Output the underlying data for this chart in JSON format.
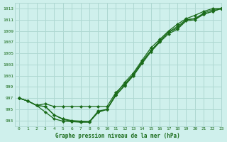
{
  "title": "Graphe pression niveau de la mer (hPa)",
  "background_color": "#cff0ec",
  "grid_color": "#aed8d2",
  "line_color": "#1a6b1a",
  "marker_color": "#1a6b1a",
  "xlim": [
    -0.5,
    23
  ],
  "ylim": [
    992.0,
    1014.0
  ],
  "yticks": [
    993,
    995,
    997,
    999,
    1001,
    1003,
    1005,
    1007,
    1009,
    1011,
    1013
  ],
  "xticks": [
    0,
    1,
    2,
    3,
    4,
    5,
    6,
    7,
    8,
    9,
    10,
    11,
    12,
    13,
    14,
    15,
    16,
    17,
    18,
    19,
    20,
    21,
    22,
    23
  ],
  "series": [
    [
      997.0,
      996.5,
      995.7,
      996.0,
      995.5,
      995.5,
      995.5,
      995.5,
      995.5,
      995.5,
      995.5,
      998.0,
      999.5,
      1001.2,
      1003.5,
      1005.5,
      1007.2,
      1008.8,
      1009.8,
      1011.0,
      1011.2,
      1012.0,
      1012.5,
      1013.0
    ],
    [
      997.0,
      996.5,
      995.7,
      995.5,
      994.0,
      993.3,
      993.0,
      992.9,
      992.8,
      994.7,
      995.0,
      997.5,
      999.2,
      1001.0,
      1003.2,
      1005.3,
      1007.0,
      1008.5,
      1009.3,
      1010.8,
      1011.0,
      1012.0,
      1012.5,
      1013.0
    ],
    [
      997.0,
      996.5,
      995.7,
      995.5,
      994.0,
      993.2,
      992.9,
      992.8,
      992.8,
      994.5,
      995.0,
      997.5,
      999.3,
      1001.2,
      1003.5,
      1005.5,
      1007.2,
      1008.8,
      1009.5,
      1011.0,
      1011.2,
      1012.2,
      1012.8,
      1013.0
    ],
    [
      997.0,
      996.5,
      995.7,
      994.5,
      993.3,
      992.9,
      992.8,
      992.7,
      992.7,
      994.5,
      995.0,
      997.7,
      999.8,
      1001.5,
      1003.8,
      1006.0,
      1007.5,
      1009.0,
      1010.2,
      1011.2,
      1011.8,
      1012.5,
      1013.0,
      1013.0
    ]
  ]
}
